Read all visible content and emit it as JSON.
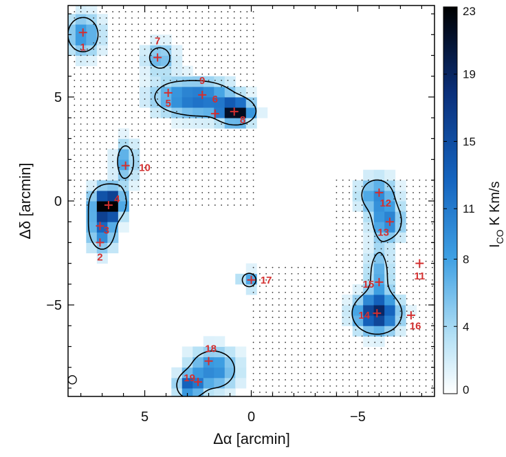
{
  "chart_data": {
    "type": "heatmap",
    "title": "",
    "xlabel": "Δα [arcmin]",
    "ylabel": "Δδ [arcmin]",
    "xlim": [
      8.6,
      -8.6
    ],
    "ylim": [
      -9.4,
      9.4
    ],
    "xticks": [
      5,
      0,
      -5
    ],
    "yticks": [
      5,
      0,
      -5
    ],
    "grid": false,
    "colorbar": {
      "label": "I_CO K Km/s",
      "label_main": "I",
      "label_sub": "CO",
      "label_rest": " K Km/s",
      "min": 0,
      "max": 23,
      "ticks": [
        0,
        4,
        8,
        11,
        15,
        19,
        23
      ],
      "colors": [
        "#ffffff",
        "#b3e0f5",
        "#3fa0e3",
        "#1565c0",
        "#0a2f7a",
        "#000000"
      ]
    },
    "beam": {
      "x": 8.4,
      "y": -8.6
    },
    "blobs": [
      {
        "x": 7.9,
        "y": 8.0,
        "sx": 0.6,
        "sy": 0.7,
        "peak": 9
      },
      {
        "x": 4.3,
        "y": 6.9,
        "sx": 0.5,
        "sy": 0.5,
        "peak": 7
      },
      {
        "x": 3.5,
        "y": 5.0,
        "sx": 1.0,
        "sy": 0.6,
        "peak": 7
      },
      {
        "x": 2.0,
        "y": 4.9,
        "sx": 1.0,
        "sy": 0.6,
        "peak": 9
      },
      {
        "x": 0.7,
        "y": 4.3,
        "sx": 0.5,
        "sy": 0.35,
        "peak": 22
      },
      {
        "x": 5.9,
        "y": 1.9,
        "sx": 0.35,
        "sy": 0.7,
        "peak": 8
      },
      {
        "x": 6.7,
        "y": 0.0,
        "sx": 0.5,
        "sy": 0.5,
        "peak": 15
      },
      {
        "x": 7.0,
        "y": -1.2,
        "sx": 0.45,
        "sy": 0.8,
        "peak": 12
      },
      {
        "x": 6.6,
        "y": -0.3,
        "sx": 0.3,
        "sy": 0.3,
        "peak": 14
      },
      {
        "x": 0.1,
        "y": -3.8,
        "sx": 0.3,
        "sy": 0.3,
        "peak": 8
      },
      {
        "x": -5.9,
        "y": 0.3,
        "sx": 0.6,
        "sy": 0.6,
        "peak": 9
      },
      {
        "x": -6.4,
        "y": -1.0,
        "sx": 0.5,
        "sy": 0.6,
        "peak": 10
      },
      {
        "x": -6.0,
        "y": -3.5,
        "sx": 0.4,
        "sy": 1.0,
        "peak": 7
      },
      {
        "x": -5.9,
        "y": -5.4,
        "sx": 0.7,
        "sy": 0.6,
        "peak": 18
      },
      {
        "x": 1.8,
        "y": -8.1,
        "sx": 0.8,
        "sy": 0.7,
        "peak": 10
      },
      {
        "x": 2.9,
        "y": -8.9,
        "sx": 0.4,
        "sy": 0.4,
        "peak": 12
      }
    ],
    "sources": [
      {
        "id": "1",
        "x": 7.9,
        "y": 8.1,
        "lx": 0.0,
        "ly": -0.7
      },
      {
        "id": "2",
        "x": 7.1,
        "y": -2.0,
        "lx": 0.0,
        "ly": -0.7
      },
      {
        "id": "3",
        "x": 7.1,
        "y": -1.2,
        "lx": -0.3,
        "ly": -0.2
      },
      {
        "id": "4",
        "x": 6.7,
        "y": -0.2,
        "lx": -0.4,
        "ly": 0.3
      },
      {
        "id": "5",
        "x": 3.9,
        "y": 5.2,
        "lx": 0.0,
        "ly": -0.5
      },
      {
        "id": "6",
        "x": 1.7,
        "y": 4.2,
        "lx": 0.0,
        "ly": 0.7
      },
      {
        "id": "7",
        "x": 4.4,
        "y": 6.9,
        "lx": 0.0,
        "ly": 0.8
      },
      {
        "id": "8",
        "x": 0.8,
        "y": 4.3,
        "lx": -0.4,
        "ly": -0.4
      },
      {
        "id": "9",
        "x": 2.3,
        "y": 5.1,
        "lx": 0.0,
        "ly": 0.7
      },
      {
        "id": "10",
        "x": 5.9,
        "y": 1.7,
        "lx": -0.9,
        "ly": -0.1
      },
      {
        "id": "11",
        "x": -7.9,
        "y": -3.0,
        "lx": 0.0,
        "ly": -0.6
      },
      {
        "id": "12",
        "x": -6.0,
        "y": 0.4,
        "lx": -0.3,
        "ly": -0.5
      },
      {
        "id": "13",
        "x": -6.5,
        "y": -1.0,
        "lx": 0.3,
        "ly": -0.5
      },
      {
        "id": "14",
        "x": -5.9,
        "y": -5.4,
        "lx": 0.6,
        "ly": -0.1
      },
      {
        "id": "15",
        "x": -6.0,
        "y": -3.9,
        "lx": 0.5,
        "ly": -0.1
      },
      {
        "id": "16",
        "x": -7.5,
        "y": -5.5,
        "lx": -0.2,
        "ly": -0.5
      },
      {
        "id": "17",
        "x": 0.0,
        "y": -3.8,
        "lx": -0.7,
        "ly": 0.0
      },
      {
        "id": "18",
        "x": 2.0,
        "y": -7.7,
        "lx": -0.1,
        "ly": 0.6
      },
      {
        "id": "19",
        "x": 2.5,
        "y": -8.7,
        "lx": 0.4,
        "ly": 0.2
      }
    ]
  }
}
